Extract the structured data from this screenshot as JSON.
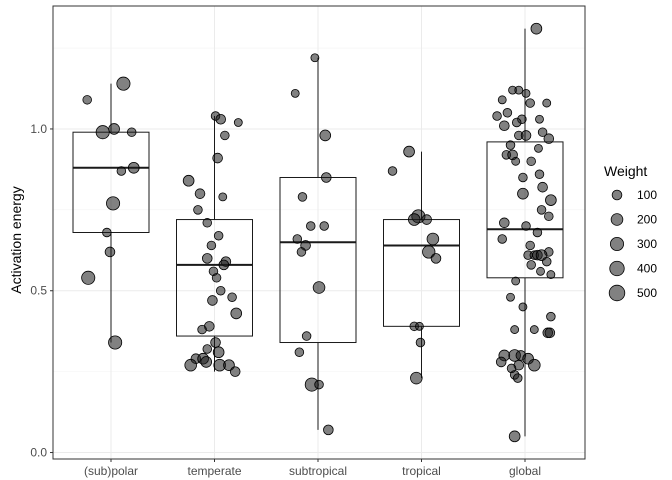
{
  "chart_data": {
    "type": "boxplot",
    "title": "",
    "xlabel": "",
    "ylabel": "Activation energy",
    "ylim": [
      -0.02,
      1.38
    ],
    "yticks": [
      0.0,
      0.5,
      1.0
    ],
    "ytick_labels": [
      "0.0",
      "0.5",
      "1.0"
    ],
    "grid": true,
    "legend_position": "right",
    "categories": [
      "(sub)polar",
      "temperate",
      "subtropical",
      "tropical",
      "global"
    ],
    "boxes": [
      {
        "category": "(sub)polar",
        "q1": 0.68,
        "median": 0.88,
        "q3": 0.99,
        "whisker_low": 0.34,
        "whisker_high": 1.14
      },
      {
        "category": "temperate",
        "q1": 0.36,
        "median": 0.58,
        "q3": 0.72,
        "whisker_low": 0.25,
        "whisker_high": 1.04
      },
      {
        "category": "subtropical",
        "q1": 0.34,
        "median": 0.65,
        "q3": 0.85,
        "whisker_low": 0.07,
        "whisker_high": 1.22
      },
      {
        "category": "tropical",
        "q1": 0.39,
        "median": 0.64,
        "q3": 0.72,
        "whisker_low": 0.23,
        "whisker_high": 0.93
      },
      {
        "category": "global",
        "q1": 0.54,
        "median": 0.69,
        "q3": 0.96,
        "whisker_low": 0.05,
        "whisker_high": 1.31
      }
    ],
    "points": [
      {
        "category": "(sub)polar",
        "jitter": -0.23,
        "y": 1.09,
        "w": 60
      },
      {
        "category": "(sub)polar",
        "jitter": 0.12,
        "y": 1.14,
        "w": 300
      },
      {
        "category": "(sub)polar",
        "jitter": -0.08,
        "y": 0.99,
        "w": 300
      },
      {
        "category": "(sub)polar",
        "jitter": 0.03,
        "y": 1.0,
        "w": 150
      },
      {
        "category": "(sub)polar",
        "jitter": 0.2,
        "y": 0.99,
        "w": 60
      },
      {
        "category": "(sub)polar",
        "jitter": 0.1,
        "y": 0.87,
        "w": 60
      },
      {
        "category": "(sub)polar",
        "jitter": 0.22,
        "y": 0.88,
        "w": 150
      },
      {
        "category": "(sub)polar",
        "jitter": 0.02,
        "y": 0.77,
        "w": 300
      },
      {
        "category": "(sub)polar",
        "jitter": -0.04,
        "y": 0.68,
        "w": 60
      },
      {
        "category": "(sub)polar",
        "jitter": -0.01,
        "y": 0.62,
        "w": 100
      },
      {
        "category": "(sub)polar",
        "jitter": -0.22,
        "y": 0.54,
        "w": 300
      },
      {
        "category": "(sub)polar",
        "jitter": 0.04,
        "y": 0.34,
        "w": 300
      },
      {
        "category": "temperate",
        "jitter": 0.01,
        "y": 1.04,
        "w": 60
      },
      {
        "category": "temperate",
        "jitter": 0.06,
        "y": 1.03,
        "w": 100
      },
      {
        "category": "temperate",
        "jitter": 0.23,
        "y": 1.02,
        "w": 40
      },
      {
        "category": "temperate",
        "jitter": 0.1,
        "y": 0.98,
        "w": 60
      },
      {
        "category": "temperate",
        "jitter": 0.03,
        "y": 0.91,
        "w": 100
      },
      {
        "category": "temperate",
        "jitter": -0.25,
        "y": 0.84,
        "w": 150
      },
      {
        "category": "temperate",
        "jitter": -0.14,
        "y": 0.8,
        "w": 100
      },
      {
        "category": "temperate",
        "jitter": 0.08,
        "y": 0.79,
        "w": 40
      },
      {
        "category": "temperate",
        "jitter": -0.16,
        "y": 0.75,
        "w": 60
      },
      {
        "category": "temperate",
        "jitter": -0.07,
        "y": 0.71,
        "w": 60
      },
      {
        "category": "temperate",
        "jitter": 0.04,
        "y": 0.67,
        "w": 60
      },
      {
        "category": "temperate",
        "jitter": -0.03,
        "y": 0.64,
        "w": 60
      },
      {
        "category": "temperate",
        "jitter": -0.07,
        "y": 0.6,
        "w": 100
      },
      {
        "category": "temperate",
        "jitter": 0.11,
        "y": 0.59,
        "w": 100
      },
      {
        "category": "temperate",
        "jitter": 0.09,
        "y": 0.58,
        "w": 100
      },
      {
        "category": "temperate",
        "jitter": -0.01,
        "y": 0.56,
        "w": 60
      },
      {
        "category": "temperate",
        "jitter": 0.02,
        "y": 0.54,
        "w": 60
      },
      {
        "category": "temperate",
        "jitter": 0.06,
        "y": 0.5,
        "w": 60
      },
      {
        "category": "temperate",
        "jitter": 0.17,
        "y": 0.48,
        "w": 60
      },
      {
        "category": "temperate",
        "jitter": -0.02,
        "y": 0.47,
        "w": 100
      },
      {
        "category": "temperate",
        "jitter": 0.21,
        "y": 0.43,
        "w": 150
      },
      {
        "category": "temperate",
        "jitter": -0.05,
        "y": 0.39,
        "w": 100
      },
      {
        "category": "temperate",
        "jitter": -0.12,
        "y": 0.38,
        "w": 60
      },
      {
        "category": "temperate",
        "jitter": 0.01,
        "y": 0.34,
        "w": 100
      },
      {
        "category": "temperate",
        "jitter": -0.07,
        "y": 0.32,
        "w": 60
      },
      {
        "category": "temperate",
        "jitter": 0.04,
        "y": 0.31,
        "w": 150
      },
      {
        "category": "temperate",
        "jitter": -0.18,
        "y": 0.29,
        "w": 100
      },
      {
        "category": "temperate",
        "jitter": -0.11,
        "y": 0.29,
        "w": 150
      },
      {
        "category": "temperate",
        "jitter": -0.23,
        "y": 0.27,
        "w": 200
      },
      {
        "category": "temperate",
        "jitter": -0.08,
        "y": 0.28,
        "w": 150
      },
      {
        "category": "temperate",
        "jitter": 0.05,
        "y": 0.27,
        "w": 200
      },
      {
        "category": "temperate",
        "jitter": 0.14,
        "y": 0.27,
        "w": 150
      },
      {
        "category": "temperate",
        "jitter": 0.2,
        "y": 0.25,
        "w": 100
      },
      {
        "category": "subtropical",
        "jitter": -0.03,
        "y": 1.22,
        "w": 40
      },
      {
        "category": "subtropical",
        "jitter": -0.22,
        "y": 1.11,
        "w": 40
      },
      {
        "category": "subtropical",
        "jitter": 0.07,
        "y": 0.98,
        "w": 150
      },
      {
        "category": "subtropical",
        "jitter": 0.08,
        "y": 0.85,
        "w": 100
      },
      {
        "category": "subtropical",
        "jitter": -0.15,
        "y": 0.79,
        "w": 60
      },
      {
        "category": "subtropical",
        "jitter": -0.07,
        "y": 0.7,
        "w": 60
      },
      {
        "category": "subtropical",
        "jitter": 0.06,
        "y": 0.7,
        "w": 60
      },
      {
        "category": "subtropical",
        "jitter": -0.2,
        "y": 0.66,
        "w": 60
      },
      {
        "category": "subtropical",
        "jitter": -0.12,
        "y": 0.64,
        "w": 100
      },
      {
        "category": "subtropical",
        "jitter": -0.16,
        "y": 0.62,
        "w": 60
      },
      {
        "category": "subtropical",
        "jitter": 0.01,
        "y": 0.51,
        "w": 200
      },
      {
        "category": "subtropical",
        "jitter": -0.11,
        "y": 0.36,
        "w": 60
      },
      {
        "category": "subtropical",
        "jitter": -0.18,
        "y": 0.31,
        "w": 60
      },
      {
        "category": "subtropical",
        "jitter": -0.06,
        "y": 0.21,
        "w": 300
      },
      {
        "category": "subtropical",
        "jitter": 0.01,
        "y": 0.21,
        "w": 60
      },
      {
        "category": "subtropical",
        "jitter": 0.1,
        "y": 0.07,
        "w": 100
      },
      {
        "category": "tropical",
        "jitter": -0.12,
        "y": 0.93,
        "w": 150
      },
      {
        "category": "tropical",
        "jitter": -0.28,
        "y": 0.87,
        "w": 60
      },
      {
        "category": "tropical",
        "jitter": -0.03,
        "y": 0.73,
        "w": 300
      },
      {
        "category": "tropical",
        "jitter": -0.07,
        "y": 0.72,
        "w": 200
      },
      {
        "category": "tropical",
        "jitter": 0.05,
        "y": 0.72,
        "w": 100
      },
      {
        "category": "tropical",
        "jitter": 0.11,
        "y": 0.66,
        "w": 200
      },
      {
        "category": "tropical",
        "jitter": 0.07,
        "y": 0.62,
        "w": 250
      },
      {
        "category": "tropical",
        "jitter": 0.14,
        "y": 0.6,
        "w": 100
      },
      {
        "category": "tropical",
        "jitter": -0.07,
        "y": 0.39,
        "w": 60
      },
      {
        "category": "tropical",
        "jitter": -0.02,
        "y": 0.39,
        "w": 40
      },
      {
        "category": "tropical",
        "jitter": -0.01,
        "y": 0.34,
        "w": 60
      },
      {
        "category": "tropical",
        "jitter": -0.05,
        "y": 0.23,
        "w": 200
      },
      {
        "category": "global",
        "jitter": 0.11,
        "y": 1.31,
        "w": 150
      },
      {
        "category": "global",
        "jitter": -0.12,
        "y": 1.12,
        "w": 40
      },
      {
        "category": "global",
        "jitter": -0.06,
        "y": 1.12,
        "w": 40
      },
      {
        "category": "global",
        "jitter": 0.01,
        "y": 1.11,
        "w": 40
      },
      {
        "category": "global",
        "jitter": -0.22,
        "y": 1.09,
        "w": 40
      },
      {
        "category": "global",
        "jitter": 0.05,
        "y": 1.08,
        "w": 60
      },
      {
        "category": "global",
        "jitter": 0.21,
        "y": 1.08,
        "w": 40
      },
      {
        "category": "global",
        "jitter": -0.17,
        "y": 1.05,
        "w": 60
      },
      {
        "category": "global",
        "jitter": -0.27,
        "y": 1.04,
        "w": 60
      },
      {
        "category": "global",
        "jitter": -0.03,
        "y": 1.03,
        "w": 60
      },
      {
        "category": "global",
        "jitter": 0.14,
        "y": 1.03,
        "w": 40
      },
      {
        "category": "global",
        "jitter": -0.08,
        "y": 1.02,
        "w": 60
      },
      {
        "category": "global",
        "jitter": -0.2,
        "y": 1.01,
        "w": 100
      },
      {
        "category": "global",
        "jitter": 0.17,
        "y": 0.99,
        "w": 60
      },
      {
        "category": "global",
        "jitter": -0.06,
        "y": 0.98,
        "w": 60
      },
      {
        "category": "global",
        "jitter": 0.01,
        "y": 0.98,
        "w": 100
      },
      {
        "category": "global",
        "jitter": 0.23,
        "y": 0.97,
        "w": 100
      },
      {
        "category": "global",
        "jitter": -0.14,
        "y": 0.95,
        "w": 60
      },
      {
        "category": "global",
        "jitter": 0.13,
        "y": 0.94,
        "w": 40
      },
      {
        "category": "global",
        "jitter": -0.18,
        "y": 0.92,
        "w": 60
      },
      {
        "category": "global",
        "jitter": -0.12,
        "y": 0.92,
        "w": 100
      },
      {
        "category": "global",
        "jitter": -0.09,
        "y": 0.9,
        "w": 40
      },
      {
        "category": "global",
        "jitter": 0.06,
        "y": 0.9,
        "w": 60
      },
      {
        "category": "global",
        "jitter": 0.14,
        "y": 0.86,
        "w": 60
      },
      {
        "category": "global",
        "jitter": -0.02,
        "y": 0.85,
        "w": 60
      },
      {
        "category": "global",
        "jitter": 0.17,
        "y": 0.82,
        "w": 100
      },
      {
        "category": "global",
        "jitter": -0.02,
        "y": 0.8,
        "w": 150
      },
      {
        "category": "global",
        "jitter": 0.25,
        "y": 0.78,
        "w": 150
      },
      {
        "category": "global",
        "jitter": 0.16,
        "y": 0.75,
        "w": 60
      },
      {
        "category": "global",
        "jitter": 0.23,
        "y": 0.73,
        "w": 60
      },
      {
        "category": "global",
        "jitter": -0.2,
        "y": 0.71,
        "w": 100
      },
      {
        "category": "global",
        "jitter": 0.01,
        "y": 0.7,
        "w": 60
      },
      {
        "category": "global",
        "jitter": 0.12,
        "y": 0.68,
        "w": 60
      },
      {
        "category": "global",
        "jitter": -0.22,
        "y": 0.66,
        "w": 60
      },
      {
        "category": "global",
        "jitter": 0.05,
        "y": 0.64,
        "w": 60
      },
      {
        "category": "global",
        "jitter": 0.23,
        "y": 0.62,
        "w": 60
      },
      {
        "category": "global",
        "jitter": 0.03,
        "y": 0.61,
        "w": 60
      },
      {
        "category": "global",
        "jitter": 0.09,
        "y": 0.61,
        "w": 60
      },
      {
        "category": "global",
        "jitter": 0.12,
        "y": 0.61,
        "w": 100
      },
      {
        "category": "global",
        "jitter": 0.16,
        "y": 0.61,
        "w": 150
      },
      {
        "category": "global",
        "jitter": 0.21,
        "y": 0.59,
        "w": 60
      },
      {
        "category": "global",
        "jitter": 0.06,
        "y": 0.58,
        "w": 60
      },
      {
        "category": "global",
        "jitter": 0.15,
        "y": 0.56,
        "w": 40
      },
      {
        "category": "global",
        "jitter": 0.25,
        "y": 0.55,
        "w": 40
      },
      {
        "category": "global",
        "jitter": -0.09,
        "y": 0.53,
        "w": 40
      },
      {
        "category": "global",
        "jitter": -0.14,
        "y": 0.48,
        "w": 40
      },
      {
        "category": "global",
        "jitter": -0.02,
        "y": 0.45,
        "w": 40
      },
      {
        "category": "global",
        "jitter": 0.25,
        "y": 0.42,
        "w": 60
      },
      {
        "category": "global",
        "jitter": 0.09,
        "y": 0.38,
        "w": 40
      },
      {
        "category": "global",
        "jitter": -0.1,
        "y": 0.38,
        "w": 40
      },
      {
        "category": "global",
        "jitter": 0.22,
        "y": 0.37,
        "w": 100
      },
      {
        "category": "global",
        "jitter": 0.24,
        "y": 0.37,
        "w": 100
      },
      {
        "category": "global",
        "jitter": -0.2,
        "y": 0.3,
        "w": 150
      },
      {
        "category": "global",
        "jitter": -0.1,
        "y": 0.3,
        "w": 200
      },
      {
        "category": "global",
        "jitter": -0.04,
        "y": 0.3,
        "w": 100
      },
      {
        "category": "global",
        "jitter": 0.03,
        "y": 0.29,
        "w": 150
      },
      {
        "category": "global",
        "jitter": -0.23,
        "y": 0.28,
        "w": 100
      },
      {
        "category": "global",
        "jitter": -0.06,
        "y": 0.27,
        "w": 100
      },
      {
        "category": "global",
        "jitter": 0.09,
        "y": 0.27,
        "w": 200
      },
      {
        "category": "global",
        "jitter": -0.13,
        "y": 0.26,
        "w": 60
      },
      {
        "category": "global",
        "jitter": -0.1,
        "y": 0.24,
        "w": 60
      },
      {
        "category": "global",
        "jitter": -0.07,
        "y": 0.23,
        "w": 60
      },
      {
        "category": "global",
        "jitter": -0.1,
        "y": 0.05,
        "w": 150
      }
    ],
    "legend": {
      "title": "Weight",
      "values": [
        100,
        200,
        300,
        400,
        500
      ],
      "labels": [
        "100",
        "200",
        "300",
        "400",
        "500"
      ]
    },
    "colors": {
      "point_fill": "#1a1a1a",
      "point_stroke": "#000000",
      "box_stroke": "#1a1a1a",
      "grid": "#ebebeb",
      "panel_border": "#333333",
      "tick_text": "#4d4d4d"
    }
  }
}
